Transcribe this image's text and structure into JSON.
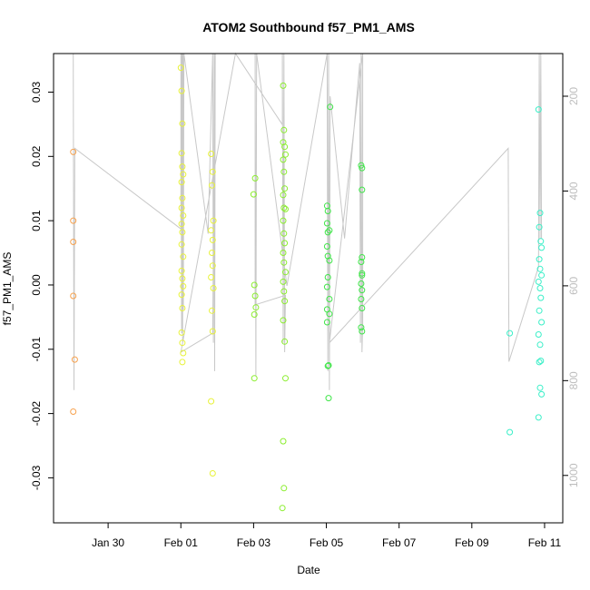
{
  "chart_data": {
    "type": "scatter",
    "title": "ATOM2 Southbound f57_PM1_AMS",
    "xlabel": "Date",
    "ylabel": "f57_PM1_AMS",
    "xlim": [
      "2017-01-28T12:00",
      "2017-02-11T12:00"
    ],
    "ylim": [
      -0.037,
      0.036
    ],
    "xticks": [
      {
        "value": "2017-01-30",
        "label": "Jan 30"
      },
      {
        "value": "2017-02-01",
        "label": "Feb 01"
      },
      {
        "value": "2017-02-03",
        "label": "Feb 03"
      },
      {
        "value": "2017-02-05",
        "label": "Feb 05"
      },
      {
        "value": "2017-02-07",
        "label": "Feb 07"
      },
      {
        "value": "2017-02-09",
        "label": "Feb 09"
      },
      {
        "value": "2017-02-11",
        "label": "Feb 11"
      }
    ],
    "yticks": [
      -0.03,
      -0.02,
      -0.01,
      0.0,
      0.01,
      0.02,
      0.03
    ],
    "ytick_labels": [
      "-0.03",
      "-0.02",
      "-0.01",
      "0.00",
      "0.01",
      "0.02",
      "0.03"
    ],
    "y2ticks": [
      200,
      400,
      600,
      800,
      1000
    ],
    "y2lim": [
      110,
      1100
    ],
    "grid": false,
    "series": [
      {
        "color": "#F7A24F",
        "points": [
          {
            "x": "2017-01-29T01:00",
            "y": 0.0207
          },
          {
            "x": "2017-01-29T01:00",
            "y": 0.01
          },
          {
            "x": "2017-01-29T01:00",
            "y": 0.0067
          },
          {
            "x": "2017-01-29T01:00",
            "y": -0.0017
          },
          {
            "x": "2017-01-29T02:00",
            "y": -0.0116
          },
          {
            "x": "2017-01-29T01:00",
            "y": -0.0197
          }
        ]
      },
      {
        "color": "#E8F23A",
        "points": [
          {
            "x": "2017-02-01T00:00",
            "y": 0.0338
          },
          {
            "x": "2017-02-01T00:30",
            "y": 0.0302
          },
          {
            "x": "2017-02-01T01:00",
            "y": 0.0251
          },
          {
            "x": "2017-02-01T00:30",
            "y": 0.0205
          },
          {
            "x": "2017-02-01T01:00",
            "y": 0.0184
          },
          {
            "x": "2017-02-01T01:30",
            "y": 0.0172
          },
          {
            "x": "2017-02-01T00:30",
            "y": 0.016
          },
          {
            "x": "2017-02-01T01:00",
            "y": 0.0135
          },
          {
            "x": "2017-02-01T00:30",
            "y": 0.012
          },
          {
            "x": "2017-02-01T01:30",
            "y": 0.0108
          },
          {
            "x": "2017-02-01T00:30",
            "y": 0.0095
          },
          {
            "x": "2017-02-01T01:00",
            "y": 0.0082
          },
          {
            "x": "2017-02-01T00:30",
            "y": 0.0063
          },
          {
            "x": "2017-02-01T01:30",
            "y": 0.0044
          },
          {
            "x": "2017-02-01T00:30",
            "y": 0.0022
          },
          {
            "x": "2017-02-01T01:00",
            "y": 0.001
          },
          {
            "x": "2017-02-01T01:30",
            "y": -0.0002
          },
          {
            "x": "2017-02-01T00:30",
            "y": -0.0015
          },
          {
            "x": "2017-02-01T01:00",
            "y": -0.0036
          },
          {
            "x": "2017-02-01T00:30",
            "y": -0.0074
          },
          {
            "x": "2017-02-01T01:00",
            "y": -0.009
          },
          {
            "x": "2017-02-01T01:30",
            "y": -0.0106
          },
          {
            "x": "2017-02-01T01:00",
            "y": -0.012
          },
          {
            "x": "2017-02-01T20:00",
            "y": 0.0204
          },
          {
            "x": "2017-02-01T21:00",
            "y": 0.0176
          },
          {
            "x": "2017-02-01T20:30",
            "y": 0.0155
          },
          {
            "x": "2017-02-01T21:30",
            "y": 0.01
          },
          {
            "x": "2017-02-01T20:00",
            "y": 0.0085
          },
          {
            "x": "2017-02-01T21:00",
            "y": 0.007
          },
          {
            "x": "2017-02-01T20:30",
            "y": 0.005
          },
          {
            "x": "2017-02-01T21:00",
            "y": 0.003
          },
          {
            "x": "2017-02-01T20:00",
            "y": 0.0012
          },
          {
            "x": "2017-02-01T21:30",
            "y": -0.0005
          },
          {
            "x": "2017-02-01T20:30",
            "y": -0.004
          },
          {
            "x": "2017-02-01T21:00",
            "y": -0.0072
          },
          {
            "x": "2017-02-01T20:00",
            "y": -0.0181
          },
          {
            "x": "2017-02-01T21:00",
            "y": -0.0293
          }
        ]
      },
      {
        "color": "#8BEE2E",
        "points": [
          {
            "x": "2017-02-03T01:00",
            "y": 0.0166
          },
          {
            "x": "2017-02-03T00:00",
            "y": 0.0141
          },
          {
            "x": "2017-02-03T00:30",
            "y": 0.0
          },
          {
            "x": "2017-02-03T01:00",
            "y": -0.0017
          },
          {
            "x": "2017-02-03T01:30",
            "y": -0.0035
          },
          {
            "x": "2017-02-03T00:30",
            "y": -0.0046
          },
          {
            "x": "2017-02-03T00:30",
            "y": -0.0145
          },
          {
            "x": "2017-02-03T19:30",
            "y": 0.031
          },
          {
            "x": "2017-02-03T20:00",
            "y": 0.0241
          },
          {
            "x": "2017-02-03T19:30",
            "y": 0.0222
          },
          {
            "x": "2017-02-03T20:30",
            "y": 0.0215
          },
          {
            "x": "2017-02-03T21:00",
            "y": 0.0203
          },
          {
            "x": "2017-02-03T19:30",
            "y": 0.0195
          },
          {
            "x": "2017-02-03T20:00",
            "y": 0.0176
          },
          {
            "x": "2017-02-03T20:30",
            "y": 0.015
          },
          {
            "x": "2017-02-03T19:30",
            "y": 0.014
          },
          {
            "x": "2017-02-03T20:00",
            "y": 0.012
          },
          {
            "x": "2017-02-03T21:00",
            "y": 0.0118
          },
          {
            "x": "2017-02-03T19:30",
            "y": 0.01
          },
          {
            "x": "2017-02-03T20:00",
            "y": 0.008
          },
          {
            "x": "2017-02-03T20:30",
            "y": 0.0065
          },
          {
            "x": "2017-02-03T19:30",
            "y": 0.005
          },
          {
            "x": "2017-02-03T20:00",
            "y": 0.0035
          },
          {
            "x": "2017-02-03T21:00",
            "y": 0.002
          },
          {
            "x": "2017-02-03T19:30",
            "y": 0.0005
          },
          {
            "x": "2017-02-03T20:00",
            "y": -0.001
          },
          {
            "x": "2017-02-03T20:30",
            "y": -0.0025
          },
          {
            "x": "2017-02-03T19:30",
            "y": -0.0055
          },
          {
            "x": "2017-02-03T20:30",
            "y": -0.0088
          },
          {
            "x": "2017-02-03T21:00",
            "y": -0.0145
          },
          {
            "x": "2017-02-03T19:30",
            "y": -0.0243
          },
          {
            "x": "2017-02-03T20:00",
            "y": -0.0316
          },
          {
            "x": "2017-02-03T19:00",
            "y": -0.0347
          }
        ]
      },
      {
        "color": "#3FE648",
        "points": [
          {
            "x": "2017-02-05T00:30",
            "y": 0.0123
          },
          {
            "x": "2017-02-05T01:00",
            "y": 0.0115
          },
          {
            "x": "2017-02-05T00:30",
            "y": 0.0096
          },
          {
            "x": "2017-02-05T01:00",
            "y": 0.0082
          },
          {
            "x": "2017-02-05T02:00",
            "y": 0.0085
          },
          {
            "x": "2017-02-05T00:30",
            "y": 0.006
          },
          {
            "x": "2017-02-05T01:00",
            "y": 0.0045
          },
          {
            "x": "2017-02-05T02:00",
            "y": 0.0038
          },
          {
            "x": "2017-02-05T01:00",
            "y": 0.0012
          },
          {
            "x": "2017-02-05T00:30",
            "y": -0.0003
          },
          {
            "x": "2017-02-05T02:00",
            "y": -0.0022
          },
          {
            "x": "2017-02-05T00:30",
            "y": -0.0038
          },
          {
            "x": "2017-02-05T02:00",
            "y": -0.0045
          },
          {
            "x": "2017-02-05T00:30",
            "y": -0.0058
          },
          {
            "x": "2017-02-05T01:00",
            "y": -0.0126
          },
          {
            "x": "2017-02-05T01:30",
            "y": -0.0125
          },
          {
            "x": "2017-02-05T01:30",
            "y": -0.0176
          },
          {
            "x": "2017-02-05T02:30",
            "y": 0.0277
          },
          {
            "x": "2017-02-05T23:00",
            "y": 0.0186
          },
          {
            "x": "2017-02-05T23:30",
            "y": 0.0182
          },
          {
            "x": "2017-02-05T23:30",
            "y": 0.0148
          },
          {
            "x": "2017-02-05T23:30",
            "y": 0.0043
          },
          {
            "x": "2017-02-05T23:00",
            "y": 0.0036
          },
          {
            "x": "2017-02-05T23:30",
            "y": 0.0018
          },
          {
            "x": "2017-02-05T23:00",
            "y": 0.0002
          },
          {
            "x": "2017-02-05T23:30",
            "y": -0.0008
          },
          {
            "x": "2017-02-05T23:00",
            "y": -0.0022
          },
          {
            "x": "2017-02-05T23:30",
            "y": -0.0036
          },
          {
            "x": "2017-02-05T23:00",
            "y": -0.0066
          },
          {
            "x": "2017-02-05T23:30",
            "y": -0.0072
          },
          {
            "x": "2017-02-05T23:30",
            "y": 0.0015
          }
        ]
      },
      {
        "color": "#3BEFC8",
        "points": [
          {
            "x": "2017-02-10T01:00",
            "y": -0.0075
          },
          {
            "x": "2017-02-10T01:00",
            "y": -0.0229
          },
          {
            "x": "2017-02-10T20:00",
            "y": 0.0273
          },
          {
            "x": "2017-02-10T21:00",
            "y": 0.0112
          },
          {
            "x": "2017-02-10T20:30",
            "y": 0.009
          },
          {
            "x": "2017-02-10T21:30",
            "y": 0.0068
          },
          {
            "x": "2017-02-10T22:00",
            "y": 0.0058
          },
          {
            "x": "2017-02-10T20:30",
            "y": 0.004
          },
          {
            "x": "2017-02-10T21:00",
            "y": 0.0025
          },
          {
            "x": "2017-02-10T22:00",
            "y": 0.0015
          },
          {
            "x": "2017-02-10T20:00",
            "y": 0.0005
          },
          {
            "x": "2017-02-10T21:00",
            "y": -0.0005
          },
          {
            "x": "2017-02-10T21:30",
            "y": -0.002
          },
          {
            "x": "2017-02-10T20:30",
            "y": -0.004
          },
          {
            "x": "2017-02-10T22:00",
            "y": -0.0058
          },
          {
            "x": "2017-02-10T20:00",
            "y": -0.0077
          },
          {
            "x": "2017-02-10T21:00",
            "y": -0.0093
          },
          {
            "x": "2017-02-10T20:30",
            "y": -0.012
          },
          {
            "x": "2017-02-10T21:30",
            "y": -0.0118
          },
          {
            "x": "2017-02-10T21:00",
            "y": -0.016
          },
          {
            "x": "2017-02-10T22:00",
            "y": -0.017
          },
          {
            "x": "2017-02-10T20:00",
            "y": -0.0206
          }
        ]
      }
    ],
    "secondary_line": {
      "color": "#c8c8c8",
      "points": [
        {
          "x": "2017-01-29T01:00",
          "y2": 110
        },
        {
          "x": "2017-01-29T01:30",
          "y2": 820
        },
        {
          "x": "2017-01-29T02:00",
          "y2": 310
        },
        {
          "x": "2017-02-01T00:00",
          "y2": 480
        },
        {
          "x": "2017-02-01T00:00",
          "y2": 110
        },
        {
          "x": "2017-02-01T00:30",
          "y2": 700
        },
        {
          "x": "2017-02-01T00:40",
          "y2": 110
        },
        {
          "x": "2017-02-01T00:50",
          "y2": 690
        },
        {
          "x": "2017-02-01T01:00",
          "y2": 110
        },
        {
          "x": "2017-02-01T01:10",
          "y2": 720
        },
        {
          "x": "2017-02-01T01:20",
          "y2": 110
        },
        {
          "x": "2017-02-01T01:40",
          "y2": 650
        },
        {
          "x": "2017-02-01T02:00",
          "y2": 110
        },
        {
          "x": "2017-02-01T18:00",
          "y2": 490
        },
        {
          "x": "2017-02-01T21:00",
          "y2": 110
        },
        {
          "x": "2017-02-01T21:30",
          "y2": 720
        },
        {
          "x": "2017-02-01T22:00",
          "y2": 110
        },
        {
          "x": "2017-02-01T22:20",
          "y2": 780
        },
        {
          "x": "2017-02-01T22:40",
          "y2": 110
        },
        {
          "x": "2017-02-01T21:00",
          "y2": 700
        },
        {
          "x": "2017-02-01T00:00",
          "y2": 740
        },
        {
          "x": "2017-02-02T12:00",
          "y2": 110
        },
        {
          "x": "2017-02-03T19:00",
          "y2": 260
        },
        {
          "x": "2017-02-03T19:00",
          "y2": 110
        },
        {
          "x": "2017-02-03T19:30",
          "y2": 720
        },
        {
          "x": "2017-02-03T20:00",
          "y2": 110
        },
        {
          "x": "2017-02-03T20:30",
          "y2": 740
        },
        {
          "x": "2017-02-03T21:00",
          "y2": 620
        },
        {
          "x": "2017-02-03T01:00",
          "y2": 640
        },
        {
          "x": "2017-02-03T01:00",
          "y2": 110
        },
        {
          "x": "2017-02-03T01:30",
          "y2": 790
        },
        {
          "x": "2017-02-03T02:00",
          "y2": 110
        },
        {
          "x": "2017-02-03T22:00",
          "y2": 600
        },
        {
          "x": "2017-02-05T00:30",
          "y2": 110
        },
        {
          "x": "2017-02-05T01:00",
          "y2": 780
        },
        {
          "x": "2017-02-05T01:30",
          "y2": 110
        },
        {
          "x": "2017-02-05T02:00",
          "y2": 820
        },
        {
          "x": "2017-02-05T02:30",
          "y2": 200
        },
        {
          "x": "2017-02-05T12:00",
          "y2": 500
        },
        {
          "x": "2017-02-05T22:00",
          "y2": 130
        },
        {
          "x": "2017-02-05T22:30",
          "y2": 720
        },
        {
          "x": "2017-02-05T23:00",
          "y2": 110
        },
        {
          "x": "2017-02-05T23:30",
          "y2": 740
        },
        {
          "x": "2017-02-06T00:00",
          "y2": 680
        },
        {
          "x": "2017-02-06T00:00",
          "y2": 110
        },
        {
          "x": "2017-02-05T02:00",
          "y2": 720
        },
        {
          "x": "2017-02-10T00:00",
          "y2": 310
        },
        {
          "x": "2017-02-10T00:30",
          "y2": 760
        },
        {
          "x": "2017-02-10T20:00",
          "y2": 560
        },
        {
          "x": "2017-02-10T20:30",
          "y2": 110
        },
        {
          "x": "2017-02-10T21:00",
          "y2": 500
        },
        {
          "x": "2017-02-10T21:30",
          "y2": 110
        },
        {
          "x": "2017-02-10T22:00",
          "y2": 500
        }
      ]
    }
  }
}
